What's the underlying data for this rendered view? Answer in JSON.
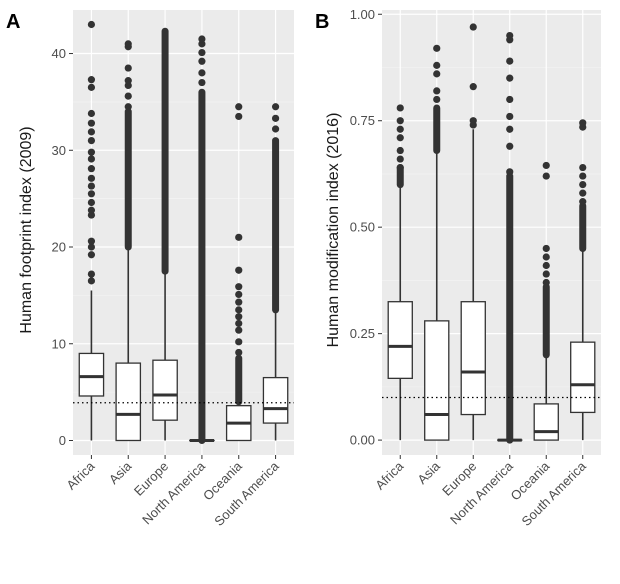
{
  "chart_data": [
    {
      "panel": "A",
      "type": "boxplot",
      "ylabel": "Human footprint index (2009)",
      "ylim": [
        -1.5,
        44.5
      ],
      "yticks": [
        0,
        10,
        20,
        30,
        40
      ],
      "ytick_labels": [
        "0",
        "10",
        "20",
        "30",
        "40"
      ],
      "categories": [
        "Africa",
        "Asia",
        "Europe",
        "North America",
        "Oceania",
        "South America"
      ],
      "reference_line": 3.9,
      "boxes": [
        {
          "q1": 4.6,
          "median": 6.6,
          "q3": 9.0,
          "lower": 0.0,
          "upper": 15.5,
          "outliers": [
            16.5,
            17.2,
            19.2,
            20.0,
            20.6,
            23.3,
            23.8,
            24.6,
            25.5,
            26.3,
            27.1,
            28.1,
            29.1,
            29.8,
            31.0,
            31.9,
            32.8,
            33.8,
            36.5,
            37.3,
            43.0
          ],
          "outlier_range": null
        },
        {
          "q1": 0.0,
          "median": 2.7,
          "q3": 8.0,
          "lower": 0.0,
          "upper": 20.0,
          "outliers": [
            34.5,
            35.6,
            36.7,
            37.2,
            38.5,
            40.7,
            41.0
          ],
          "outlier_range": [
            20.0,
            34.0
          ]
        },
        {
          "q1": 2.1,
          "median": 4.7,
          "q3": 8.3,
          "lower": 0.0,
          "upper": 17.5,
          "outliers": [],
          "outlier_range": [
            17.5,
            42.3
          ]
        },
        {
          "q1": 0.0,
          "median": 0.0,
          "q3": 0.0,
          "lower": 0.0,
          "upper": 0.0,
          "outliers": [
            37.0,
            38.0,
            39.2,
            40.1,
            41.0,
            41.5
          ],
          "outlier_range": [
            0.0,
            36.0
          ]
        },
        {
          "q1": 0.0,
          "median": 1.8,
          "q3": 3.6,
          "lower": 0.0,
          "upper": 8.5,
          "outliers": [
            9.1,
            10.2,
            11.4,
            12.1,
            12.8,
            13.5,
            14.3,
            15.1,
            15.9,
            17.6,
            21.0,
            33.5,
            34.5
          ],
          "outlier_range": [
            4.0,
            8.5
          ]
        },
        {
          "q1": 1.8,
          "median": 3.3,
          "q3": 6.5,
          "lower": 0.0,
          "upper": 13.5,
          "outliers": [
            32.2,
            33.3,
            34.5
          ],
          "outlier_range": [
            13.5,
            31.0
          ]
        }
      ]
    },
    {
      "panel": "B",
      "type": "boxplot",
      "ylabel": "Human modification index (2016)",
      "ylim": [
        -0.035,
        1.01
      ],
      "yticks": [
        0,
        0.25,
        0.5,
        0.75,
        1.0
      ],
      "ytick_labels": [
        "0.00",
        "0.25",
        "0.50",
        "0.75",
        "1.00"
      ],
      "categories": [
        "Africa",
        "Asia",
        "Europe",
        "North America",
        "Oceania",
        "South America"
      ],
      "reference_line": 0.1,
      "boxes": [
        {
          "q1": 0.145,
          "median": 0.22,
          "q3": 0.325,
          "lower": 0.0,
          "upper": 0.6,
          "outliers": [
            0.64,
            0.66,
            0.68,
            0.71,
            0.73,
            0.75,
            0.78
          ],
          "outlier_range": [
            0.6,
            0.64
          ]
        },
        {
          "q1": 0.0,
          "median": 0.06,
          "q3": 0.28,
          "lower": 0.0,
          "upper": 0.68,
          "outliers": [
            0.8,
            0.82,
            0.86,
            0.88,
            0.92
          ],
          "outlier_range": [
            0.68,
            0.78
          ]
        },
        {
          "q1": 0.06,
          "median": 0.16,
          "q3": 0.325,
          "lower": 0.0,
          "upper": 0.73,
          "outliers": [
            0.74,
            0.75,
            0.83,
            0.97
          ],
          "outlier_range": null
        },
        {
          "q1": 0.0,
          "median": 0.0,
          "q3": 0.0,
          "lower": 0.0,
          "upper": 0.0,
          "outliers": [
            0.63,
            0.69,
            0.73,
            0.76,
            0.8,
            0.85,
            0.89,
            0.94,
            0.95
          ],
          "outlier_range": [
            0.0,
            0.62
          ]
        },
        {
          "q1": 0.0,
          "median": 0.02,
          "q3": 0.085,
          "lower": 0.0,
          "upper": 0.2,
          "outliers": [
            0.37,
            0.39,
            0.41,
            0.43,
            0.45,
            0.62,
            0.645
          ],
          "outlier_range": [
            0.2,
            0.36
          ]
        },
        {
          "q1": 0.065,
          "median": 0.13,
          "q3": 0.23,
          "lower": 0.0,
          "upper": 0.45,
          "outliers": [
            0.56,
            0.58,
            0.6,
            0.62,
            0.64,
            0.735,
            0.745
          ],
          "outlier_range": [
            0.45,
            0.55
          ]
        }
      ]
    }
  ]
}
